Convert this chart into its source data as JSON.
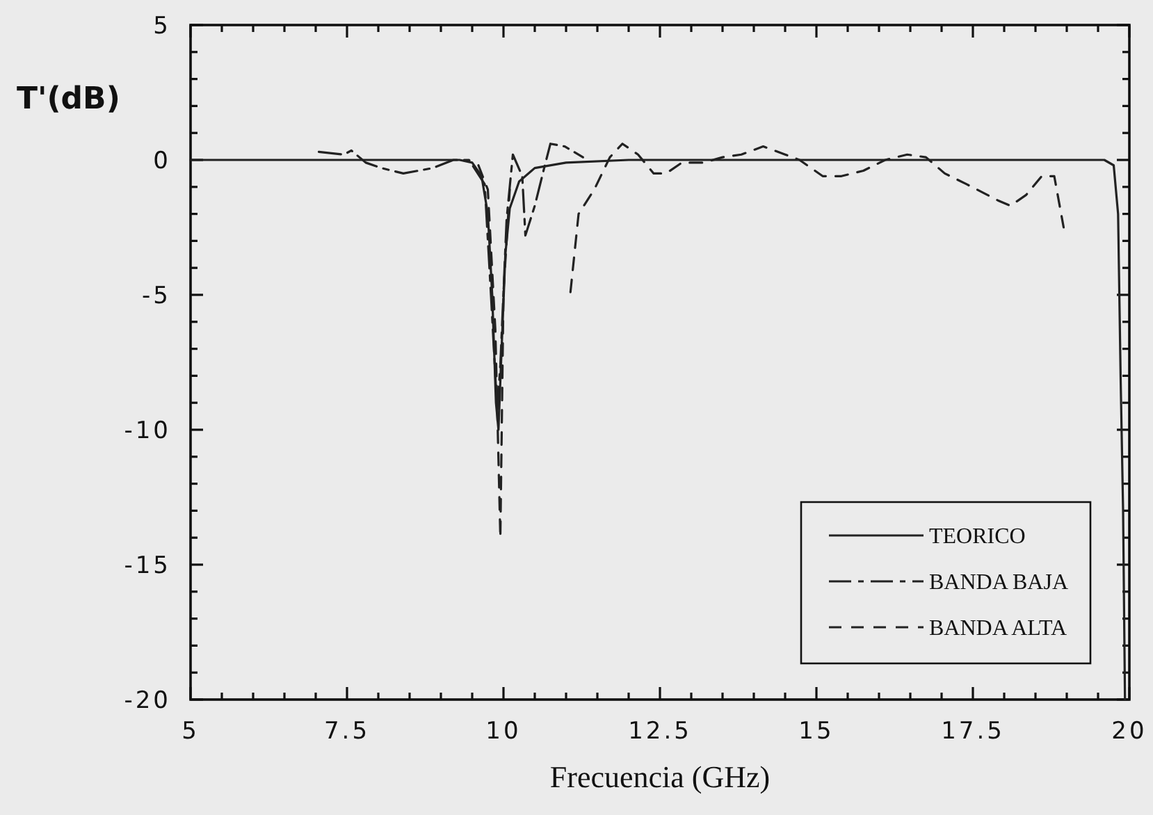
{
  "chart_data": {
    "type": "line",
    "xlabel": "Frecuencia (GHz)",
    "ylabel": "T'(dB)",
    "xlim": [
      5,
      20
    ],
    "ylim": [
      -20,
      5
    ],
    "xticks": [
      5,
      {
        "value": 5.5,
        "label": null
      },
      {
        "value": 6,
        "label": null
      },
      {
        "value": 6.5,
        "label": null
      },
      {
        "value": 7,
        "label": null
      },
      7.5,
      {
        "value": 8,
        "label": null
      },
      {
        "value": 8.5,
        "label": null
      },
      {
        "value": 9,
        "label": null
      },
      {
        "value": 9.5,
        "label": null
      },
      10,
      {
        "value": 10.5,
        "label": null
      },
      {
        "value": 11,
        "label": null
      },
      {
        "value": 11.5,
        "label": null
      },
      {
        "value": 12,
        "label": null
      },
      12.5,
      {
        "value": 13,
        "label": null
      },
      {
        "value": 13.5,
        "label": null
      },
      {
        "value": 14,
        "label": null
      },
      {
        "value": 14.5,
        "label": null
      },
      15,
      {
        "value": 15.5,
        "label": null
      },
      {
        "value": 16,
        "label": null
      },
      {
        "value": 16.5,
        "label": null
      },
      {
        "value": 17,
        "label": null
      },
      17.5,
      {
        "value": 18,
        "label": null
      },
      {
        "value": 18.5,
        "label": null
      },
      {
        "value": 19,
        "label": null
      },
      {
        "value": 19.5,
        "label": null
      },
      20
    ],
    "yticks": [
      -20,
      {
        "value": -19,
        "label": null
      },
      {
        "value": -18,
        "label": null
      },
      {
        "value": -17,
        "label": null
      },
      {
        "value": -16,
        "label": null
      },
      -15,
      {
        "value": -14,
        "label": null
      },
      {
        "value": -13,
        "label": null
      },
      {
        "value": -12,
        "label": null
      },
      {
        "value": -11,
        "label": null
      },
      -10,
      {
        "value": -9,
        "label": null
      },
      {
        "value": -8,
        "label": null
      },
      {
        "value": -7,
        "label": null
      },
      {
        "value": -6,
        "label": null
      },
      -5,
      {
        "value": -4,
        "label": null
      },
      {
        "value": -3,
        "label": null
      },
      {
        "value": -2,
        "label": null
      },
      {
        "value": -1,
        "label": null
      },
      0,
      {
        "value": 1,
        "label": null
      },
      {
        "value": 2,
        "label": null
      },
      {
        "value": 3,
        "label": null
      },
      {
        "value": 4,
        "label": null
      },
      5
    ],
    "grid": false,
    "legend": "bottom right",
    "marker": "none",
    "series": [
      {
        "name": "TEORICO",
        "color": "#222222",
        "line_style": "solid",
        "x": [
          5,
          9.3,
          9.5,
          9.65,
          9.75,
          9.82,
          9.88,
          9.92,
          9.97,
          10.03,
          10.1,
          10.25,
          10.5,
          11,
          12,
          19.6,
          19.75,
          19.82,
          19.86,
          19.9,
          19.93
        ],
        "values": [
          0,
          0,
          -0.1,
          -0.6,
          -2,
          -5,
          -9,
          -10,
          -7,
          -3.5,
          -1.8,
          -0.8,
          -0.3,
          -0.1,
          0,
          0,
          -0.2,
          -2,
          -8,
          -13,
          -20
        ]
      },
      {
        "name": "BANDA BAJA",
        "color": "#222222",
        "line_style": "dashed",
        "x": [
          7.05,
          7.45,
          7.57,
          7.8,
          8.05,
          8.4,
          8.87,
          9.2,
          9.45,
          9.7,
          9.8,
          9.9,
          9.95,
          10.05,
          10.15,
          10.3,
          10.35,
          10.5,
          10.65,
          10.75,
          10.98,
          11.27
        ],
        "values": [
          0.3,
          0.2,
          0.35,
          -0.1,
          -0.3,
          -0.5,
          -0.3,
          0,
          0,
          -0.9,
          -5,
          -9.3,
          -7.6,
          -2.2,
          0.2,
          -0.6,
          -2.8,
          -1.7,
          -0.3,
          0.6,
          0.5,
          0.1
        ]
      },
      {
        "name": "BANDA ALTA",
        "color": "#222222",
        "line_style": "dashed",
        "x": [
          9.6,
          9.75,
          9.87,
          9.95,
          10,
          10.1,
          10.6,
          11.07,
          11.2,
          11.45,
          11.7,
          11.9,
          12.15,
          12.4,
          12.6,
          12.85,
          13.2,
          13.5,
          13.8,
          14.15,
          14.5,
          14.73,
          15.1,
          15.4,
          15.75,
          16.1,
          16.45,
          16.75,
          17.05,
          17.4,
          17.9,
          18.1,
          18.35,
          18.6,
          18.8,
          18.95
        ],
        "values": [
          -0.2,
          -1.1,
          -6.3,
          -14,
          -4.9,
          -1.1,
          null,
          -4.9,
          -2,
          -1.1,
          0.1,
          0.6,
          0.2,
          -0.5,
          -0.5,
          -0.1,
          -0.1,
          0.1,
          0.2,
          0.5,
          0.2,
          0,
          -0.6,
          -0.6,
          -0.4,
          0,
          0.2,
          0.1,
          -0.5,
          -0.9,
          -1.5,
          -1.7,
          -1.3,
          -0.6,
          -0.6,
          -2.5
        ]
      }
    ]
  }
}
